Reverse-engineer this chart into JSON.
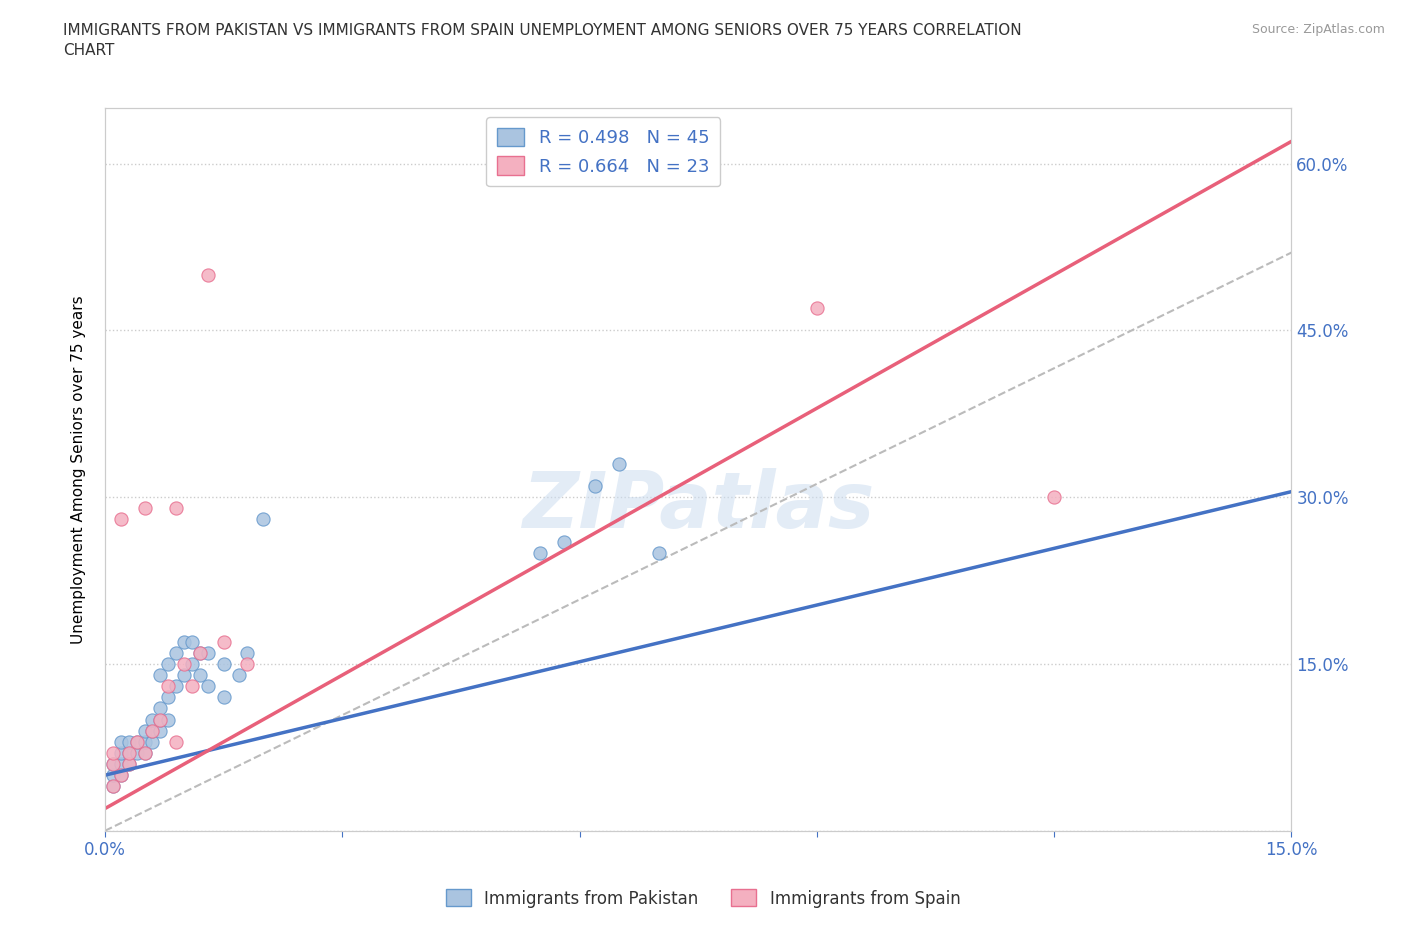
{
  "title": "IMMIGRANTS FROM PAKISTAN VS IMMIGRANTS FROM SPAIN UNEMPLOYMENT AMONG SENIORS OVER 75 YEARS CORRELATION\nCHART",
  "source": "Source: ZipAtlas.com",
  "ylabel": "Unemployment Among Seniors over 75 years",
  "xlim": [
    0.0,
    0.15
  ],
  "ylim": [
    0.0,
    0.65
  ],
  "pakistan_color": "#aac4e0",
  "spain_color": "#f4b0c0",
  "pakistan_edge": "#6699cc",
  "spain_edge": "#e87090",
  "trendline_pakistan_color": "#4472c4",
  "trendline_spain_color": "#e8607a",
  "dashed_line_color": "#bbbbbb",
  "pakistan_R": 0.498,
  "pakistan_N": 45,
  "spain_R": 0.664,
  "spain_N": 23,
  "watermark": "ZIPatlas",
  "legend_R_N_color": "#4472c4",
  "pakistan_x": [
    0.001,
    0.001,
    0.001,
    0.002,
    0.002,
    0.002,
    0.002,
    0.003,
    0.003,
    0.003,
    0.004,
    0.004,
    0.005,
    0.005,
    0.005,
    0.006,
    0.006,
    0.006,
    0.007,
    0.007,
    0.007,
    0.007,
    0.008,
    0.008,
    0.008,
    0.009,
    0.009,
    0.01,
    0.01,
    0.011,
    0.011,
    0.012,
    0.012,
    0.013,
    0.013,
    0.015,
    0.015,
    0.017,
    0.018,
    0.02,
    0.055,
    0.058,
    0.062,
    0.065,
    0.07
  ],
  "pakistan_y": [
    0.04,
    0.05,
    0.06,
    0.05,
    0.06,
    0.07,
    0.08,
    0.06,
    0.07,
    0.08,
    0.07,
    0.08,
    0.07,
    0.08,
    0.09,
    0.08,
    0.09,
    0.1,
    0.09,
    0.1,
    0.11,
    0.14,
    0.1,
    0.12,
    0.15,
    0.13,
    0.16,
    0.14,
    0.17,
    0.15,
    0.17,
    0.14,
    0.16,
    0.13,
    0.16,
    0.12,
    0.15,
    0.14,
    0.16,
    0.28,
    0.25,
    0.26,
    0.31,
    0.33,
    0.25
  ],
  "spain_x": [
    0.001,
    0.001,
    0.001,
    0.002,
    0.002,
    0.003,
    0.003,
    0.004,
    0.005,
    0.005,
    0.006,
    0.007,
    0.008,
    0.009,
    0.009,
    0.01,
    0.011,
    0.012,
    0.013,
    0.015,
    0.018,
    0.09,
    0.12
  ],
  "spain_y": [
    0.04,
    0.06,
    0.07,
    0.05,
    0.28,
    0.06,
    0.07,
    0.08,
    0.07,
    0.29,
    0.09,
    0.1,
    0.13,
    0.08,
    0.29,
    0.15,
    0.13,
    0.16,
    0.5,
    0.17,
    0.15,
    0.47,
    0.3
  ],
  "pak_line_x0": 0.0,
  "pak_line_y0": 0.05,
  "pak_line_x1": 0.15,
  "pak_line_y1": 0.305,
  "spain_line_x0": 0.0,
  "spain_line_y0": 0.02,
  "spain_line_x1": 0.15,
  "spain_line_y1": 0.62,
  "dash_line_x0": 0.0,
  "dash_line_y0": 0.0,
  "dash_line_x1": 0.15,
  "dash_line_y1": 0.52
}
